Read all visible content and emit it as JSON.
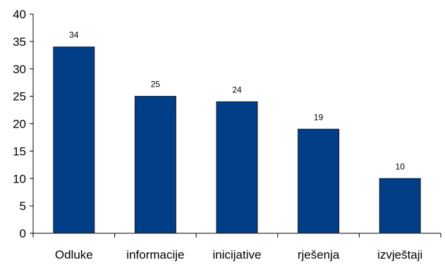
{
  "chart_data": {
    "type": "bar",
    "categories": [
      "Odluke",
      "informacije",
      "inicijative",
      "rješenja",
      "izvještaji"
    ],
    "values": [
      34,
      25,
      24,
      19,
      10
    ],
    "ylim": [
      0,
      40
    ],
    "yticks": [
      0,
      5,
      10,
      15,
      20,
      25,
      30,
      35,
      40
    ],
    "grid": false,
    "bar_color": "#003f87",
    "bar_edge_color": "#1a1a1a",
    "data_labels": [
      "34",
      "25",
      "24",
      "19",
      "10"
    ],
    "ytick_labels": [
      "0",
      "5",
      "10",
      "15",
      "20",
      "25",
      "30",
      "35",
      "40"
    ]
  }
}
